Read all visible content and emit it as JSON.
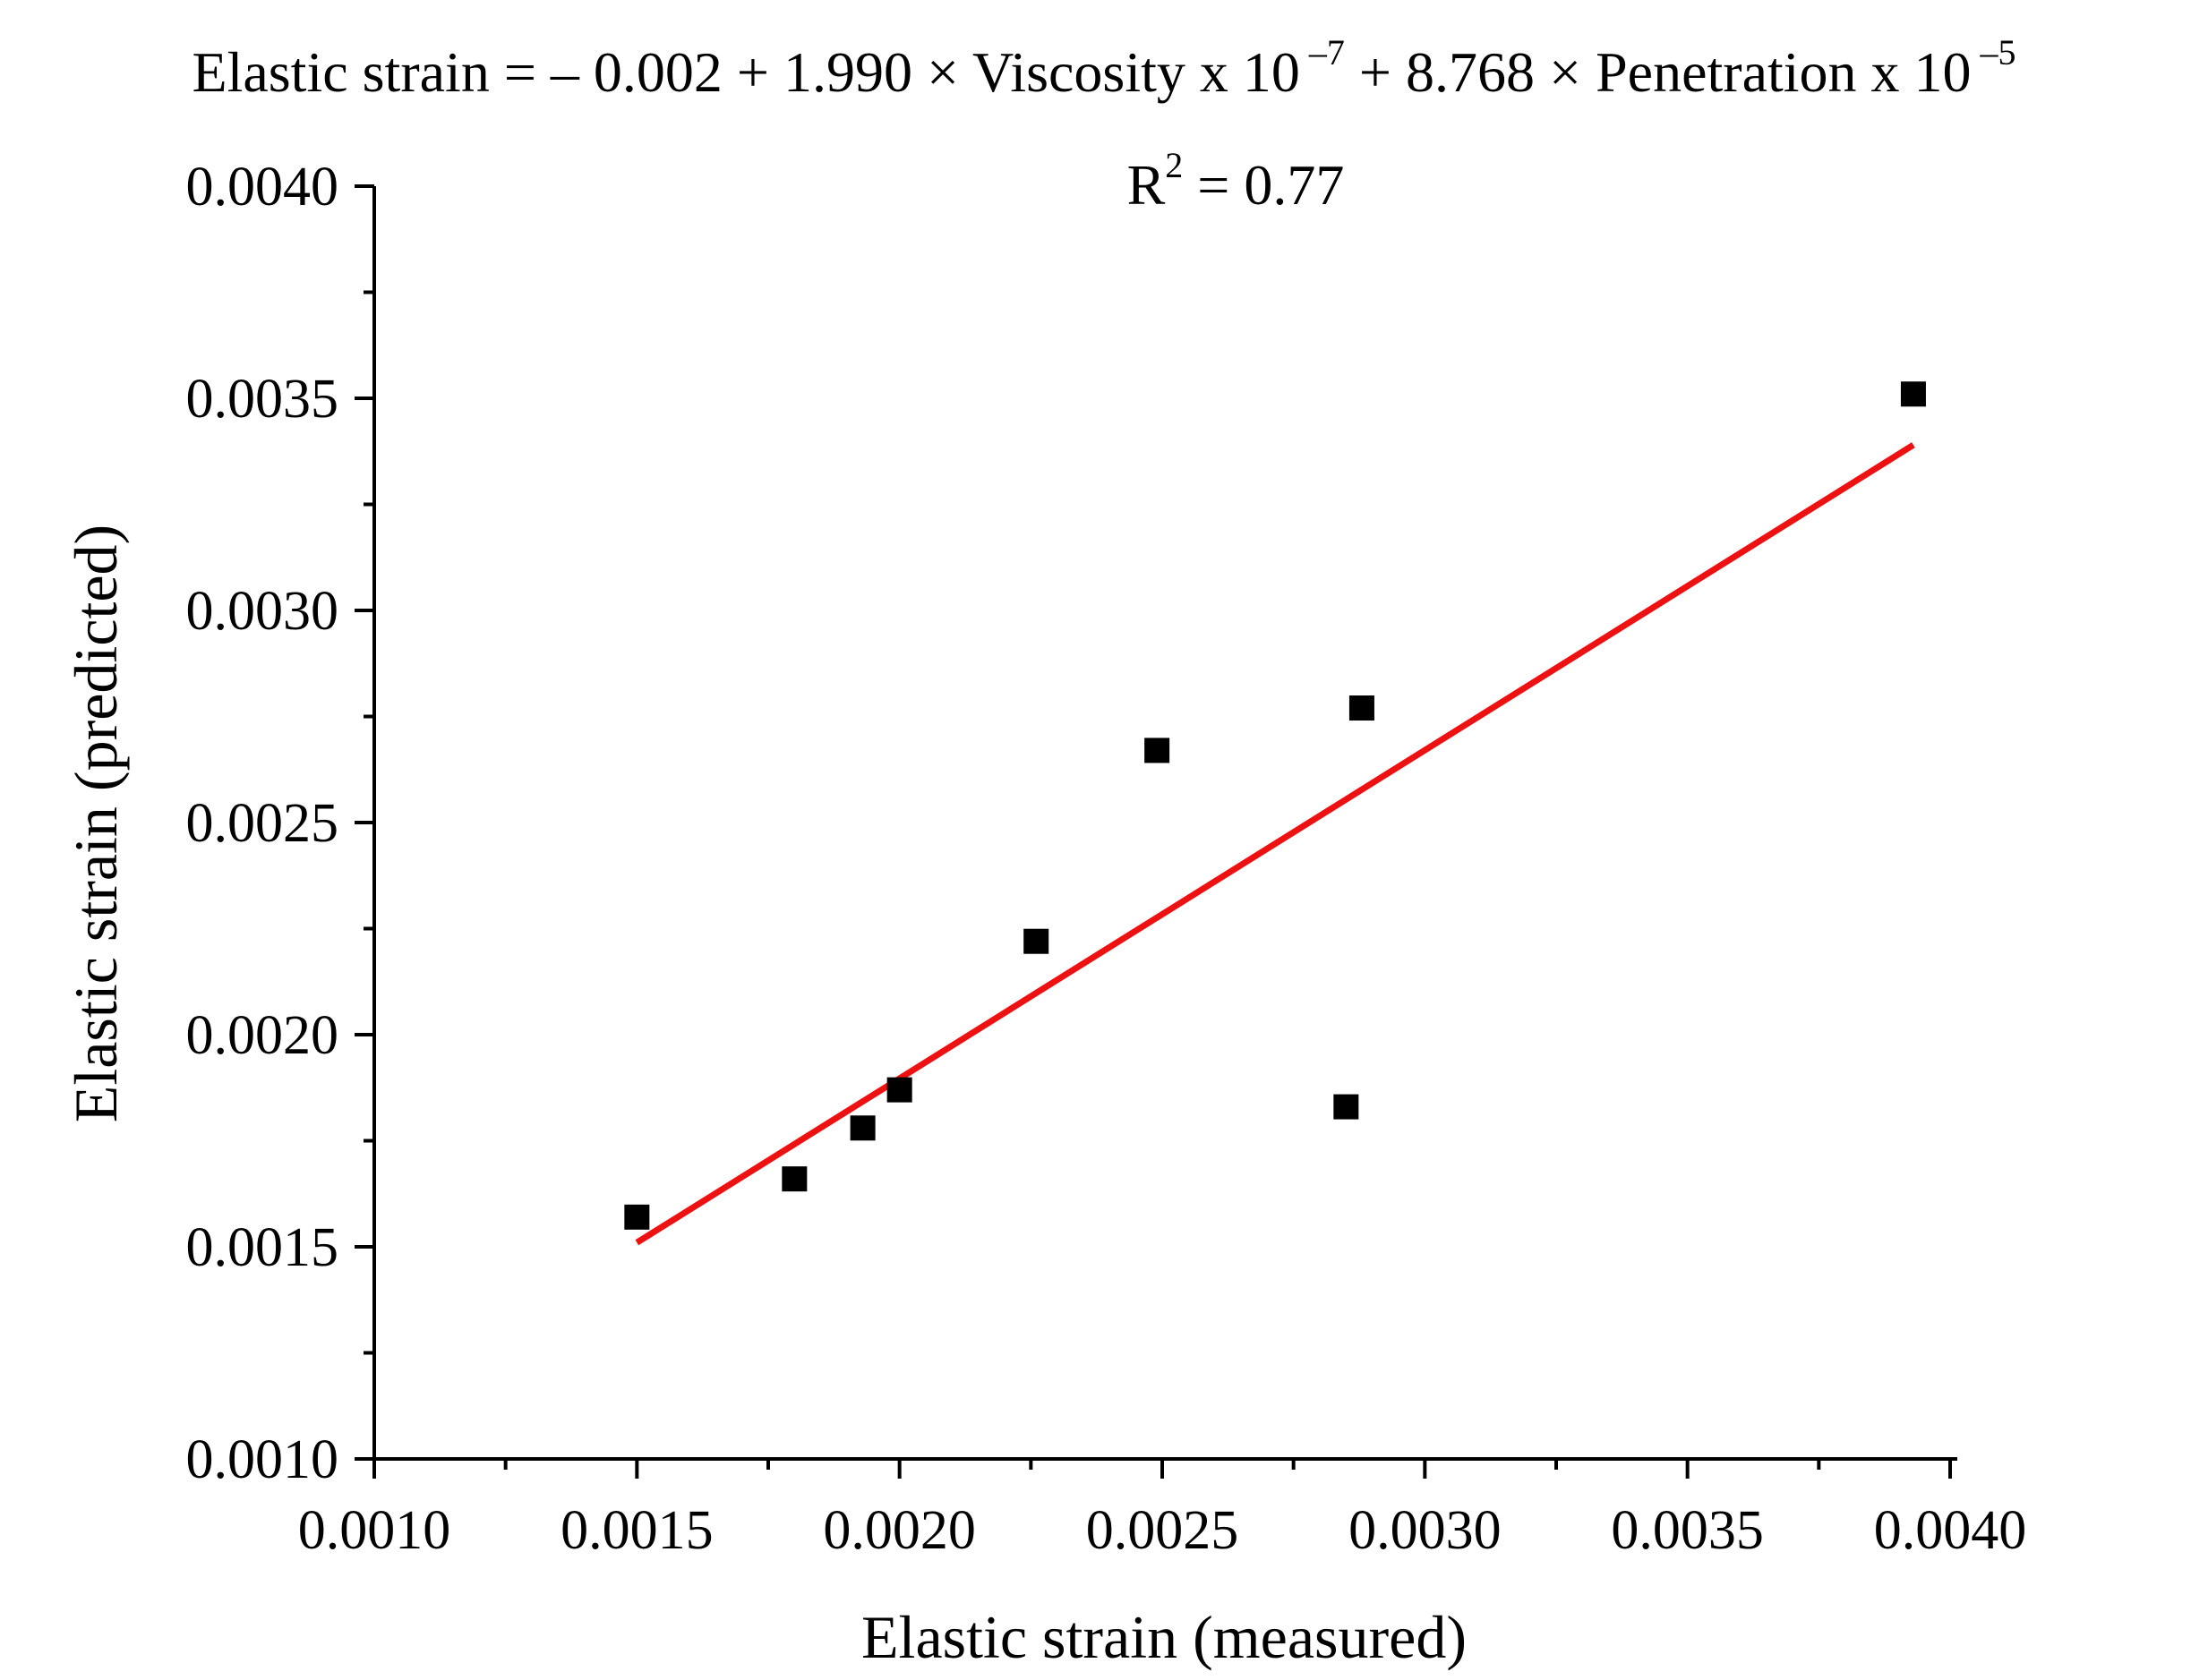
{
  "chart_data": {
    "type": "scatter",
    "title": {
      "prefix": "Elastic strain = – 0.002 + 1.990 × Viscosity x 10",
      "exp1": " –7",
      "middle": " + 8.768 × Penetration x 10",
      "exp2": " –5"
    },
    "annotation": {
      "base": "R",
      "sup": "2",
      "rest": " = 0.77"
    },
    "xlabel": "Elastic strain (measured)",
    "ylabel": "Elastic strain (predicted)",
    "xlim": [
      0.001,
      0.004
    ],
    "ylim": [
      0.001,
      0.004
    ],
    "xticks": [
      0.001,
      0.0015,
      0.002,
      0.0025,
      0.003,
      0.0035,
      0.004
    ],
    "yticks": [
      0.001,
      0.0015,
      0.002,
      0.0025,
      0.003,
      0.0035,
      0.004
    ],
    "xtick_labels": [
      "0.0010",
      "0.0015",
      "0.0020",
      "0.0025",
      "0.0030",
      "0.0035",
      "0.0040"
    ],
    "ytick_labels": [
      "0.0010",
      "0.0015",
      "0.0020",
      "0.0025",
      "0.0030",
      "0.0035",
      "0.0040"
    ],
    "grid": false,
    "series": [
      {
        "name": "data",
        "marker": "square",
        "color": "#000000",
        "points": [
          {
            "x": 0.0015,
            "y": 0.00157
          },
          {
            "x": 0.0018,
            "y": 0.00166
          },
          {
            "x": 0.00193,
            "y": 0.00178
          },
          {
            "x": 0.002,
            "y": 0.00187
          },
          {
            "x": 0.00226,
            "y": 0.00222
          },
          {
            "x": 0.00249,
            "y": 0.00267
          },
          {
            "x": 0.00285,
            "y": 0.00183
          },
          {
            "x": 0.00288,
            "y": 0.00277
          },
          {
            "x": 0.00393,
            "y": 0.00351
          }
        ]
      }
    ],
    "fit_line": {
      "color": "#ee1111",
      "x": [
        0.0015,
        0.00393
      ],
      "y": [
        0.00151,
        0.00339
      ]
    }
  }
}
